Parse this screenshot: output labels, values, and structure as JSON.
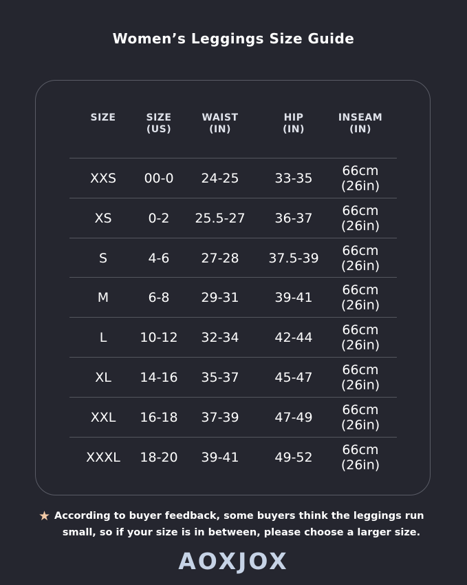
{
  "title": "Women’s Leggings Size Guide",
  "table": {
    "headers": [
      [
        "SIZE",
        ""
      ],
      [
        "SIZE",
        "(US)"
      ],
      [
        "WAIST",
        "(IN)"
      ],
      [
        "HIP",
        "(IN)"
      ],
      [
        "INSEAM",
        "(IN)"
      ]
    ],
    "rows": [
      [
        "XXS",
        "00-0",
        "24-25",
        "33-35",
        "66cm\n(26in)"
      ],
      [
        "XS",
        "0-2",
        "25.5-27",
        "36-37",
        "66cm\n(26in)"
      ],
      [
        "S",
        "4-6",
        "27-28",
        "37.5-39",
        "66cm\n(26in)"
      ],
      [
        "M",
        "6-8",
        "29-31",
        "39-41",
        "66cm\n(26in)"
      ],
      [
        "L",
        "10-12",
        "32-34",
        "42-44",
        "66cm\n(26in)"
      ],
      [
        "XL",
        "14-16",
        "35-37",
        "45-47",
        "66cm\n(26in)"
      ],
      [
        "XXL",
        "16-18",
        "37-39",
        "47-49",
        "66cm\n(26in)"
      ],
      [
        "XXXL",
        "18-20",
        "39-41",
        "49-52",
        "66cm\n(26in)"
      ]
    ]
  },
  "note": {
    "icon": "star-icon",
    "line1": "According to buyer feedback, some buyers think the leggings run",
    "line2": "small, so if your size is in between, please choose a larger size."
  },
  "brand": "AOXJOX",
  "colors": {
    "background": "#25262f",
    "star": "#f2c9a5",
    "logo": "#c6d3e6"
  }
}
